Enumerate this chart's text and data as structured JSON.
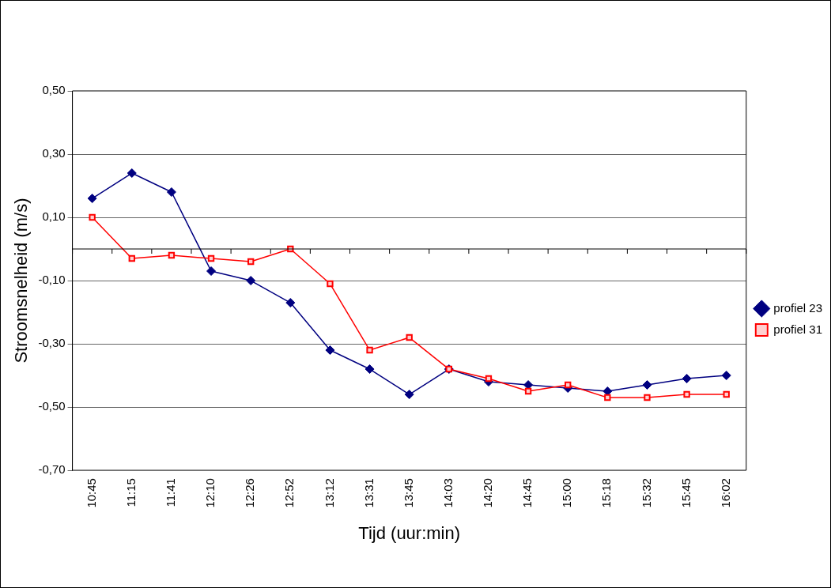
{
  "chart_data": {
    "type": "line",
    "xlabel": "Tijd (uur:min)",
    "ylabel": "Stroomsnelheid (m/s)",
    "categories": [
      "10:45",
      "11:15",
      "11:41",
      "12:10",
      "12:26",
      "12:52",
      "13:12",
      "13:31",
      "13:45",
      "14:03",
      "14:20",
      "14:45",
      "15:00",
      "15:18",
      "15:32",
      "15:45",
      "16:02"
    ],
    "series": [
      {
        "name": "profiel 23",
        "color": "#000080",
        "marker": "diamond",
        "values": [
          0.16,
          0.24,
          0.18,
          -0.07,
          -0.1,
          -0.17,
          -0.32,
          -0.38,
          -0.46,
          -0.38,
          -0.42,
          -0.43,
          -0.44,
          -0.45,
          -0.43,
          -0.41,
          -0.4
        ]
      },
      {
        "name": "profiel 31",
        "color": "#ff0000",
        "marker": "square",
        "values": [
          0.1,
          -0.03,
          -0.02,
          -0.03,
          -0.04,
          0.0,
          -0.11,
          -0.32,
          -0.28,
          -0.38,
          -0.41,
          -0.45,
          -0.43,
          -0.47,
          -0.47,
          -0.46,
          -0.46
        ]
      }
    ],
    "ylim": [
      -0.7,
      0.5
    ],
    "yticks": [
      {
        "value": -0.7,
        "label": "-0,70"
      },
      {
        "value": -0.5,
        "label": "-0,50"
      },
      {
        "value": -0.3,
        "label": "-0,30"
      },
      {
        "value": -0.1,
        "label": "-0,10"
      },
      {
        "value": 0.1,
        "label": "0,10"
      },
      {
        "value": 0.3,
        "label": "0,30"
      },
      {
        "value": 0.5,
        "label": "0,50"
      }
    ],
    "grid": "y",
    "legend": "right",
    "line_style": "solid"
  }
}
